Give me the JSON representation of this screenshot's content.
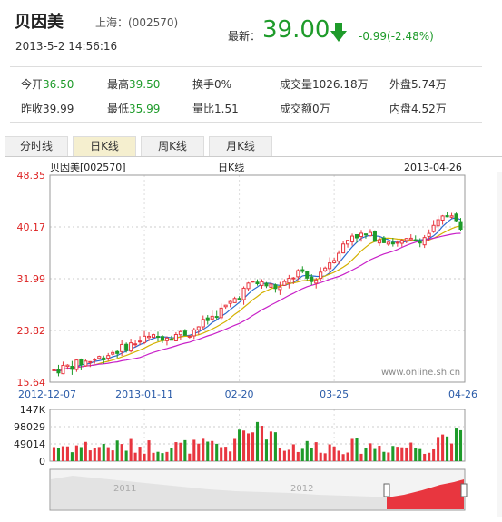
{
  "header": {
    "name": "贝因美",
    "exchange_label": "上海：(002570)",
    "timestamp": "2013-5-2 14:56:16",
    "latest_label": "最新：",
    "latest_price": "39.00",
    "change": "-0.99(-2.48%)"
  },
  "quote": {
    "open_label": "今开",
    "open": "36.50",
    "high_label": "最高",
    "high": "39.50",
    "turnover_label": "换手",
    "turnover": "0%",
    "volume_label": "成交量",
    "volume": "1026.18万",
    "outer_label": "外盘",
    "outer": "5.74万",
    "prevclose_label": "昨收",
    "prevclose": "39.99",
    "low_label": "最低",
    "low": "35.99",
    "ratio_label": "量比",
    "ratio": "1.51",
    "amount_label": "成交额",
    "amount": "0万",
    "inner_label": "内盘",
    "inner": "4.52万"
  },
  "tabs": [
    "分时线",
    "日K线",
    "周K线",
    "月K线"
  ],
  "active_tab": 1,
  "colors": {
    "up": "#e8363f",
    "down": "#1e9b2a",
    "ma5": "#2a6bd1",
    "ma10": "#d4b100",
    "ma20": "#c820c8"
  },
  "chart_data": {
    "type": "candlestick",
    "title": "日K线",
    "stock_label": "贝因美[002570]",
    "date_label": "2013-04-26",
    "watermark": "www.online.sh.cn",
    "price_ticks": [
      "48.35",
      "40.17",
      "31.99",
      "23.82",
      "15.64"
    ],
    "ylim": [
      15.64,
      48.35
    ],
    "x_ticks": [
      {
        "label": "2012-12-07",
        "index": 0
      },
      {
        "label": "2013-01-11",
        "index": 20
      },
      {
        "label": "02-20",
        "index": 41
      },
      {
        "label": "03-25",
        "index": 62
      },
      {
        "label": "04-26",
        "index": 80
      }
    ],
    "volume_ticks": [
      "147K",
      "98029",
      "49014",
      "0"
    ],
    "volume_max": 147000,
    "overview_years": [
      "2011",
      "2012"
    ],
    "candles": []
  }
}
